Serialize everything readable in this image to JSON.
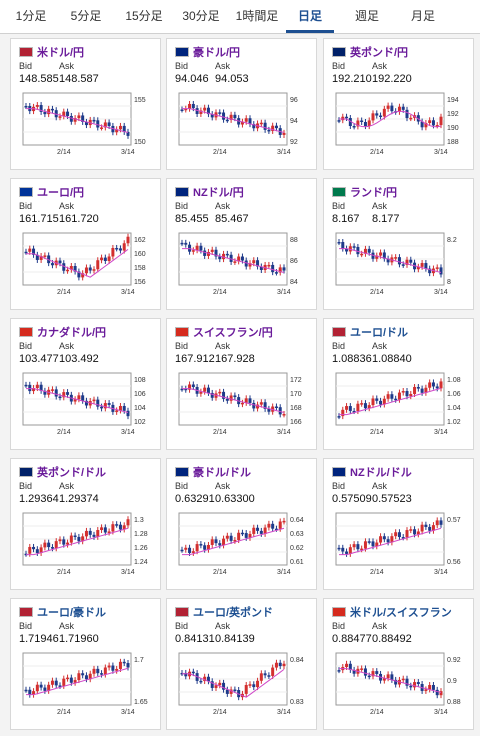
{
  "tabs": [
    {
      "label": "1分足",
      "active": false
    },
    {
      "label": "5分足",
      "active": false
    },
    {
      "label": "15分足",
      "active": false
    },
    {
      "label": "30分足",
      "active": false
    },
    {
      "label": "1時間足",
      "active": false
    },
    {
      "label": "日足",
      "active": true
    },
    {
      "label": "週足",
      "active": false
    },
    {
      "label": "月足",
      "active": false
    }
  ],
  "labels": {
    "bid": "Bid",
    "ask": "Ask"
  },
  "cards": [
    {
      "title": "米ドル/円",
      "bid": "148.585",
      "ask": "148.587",
      "ticks": [
        "155",
        "150"
      ],
      "x": [
        "2/14",
        "3/14"
      ],
      "trend": "down",
      "flag": "us"
    },
    {
      "title": "豪ドル/円",
      "bid": "94.046",
      "ask": "94.053",
      "ticks": [
        "96",
        "94",
        "92"
      ],
      "x": [
        "2/14",
        "3/14"
      ],
      "trend": "down",
      "flag": "au"
    },
    {
      "title": "英ポンド/円",
      "bid": "192.210",
      "ask": "192.220",
      "ticks": [
        "194",
        "192",
        "190",
        "188"
      ],
      "x": [
        "2/14",
        "3/14"
      ],
      "trend": "flat",
      "flag": "gb"
    },
    {
      "title": "ユーロ/円",
      "bid": "161.715",
      "ask": "161.720",
      "ticks": [
        "162",
        "160",
        "158",
        "156"
      ],
      "x": [
        "2/14",
        "3/14"
      ],
      "trend": "vshape",
      "flag": "eu"
    },
    {
      "title": "NZドル/円",
      "bid": "85.455",
      "ask": "85.467",
      "ticks": [
        "88",
        "86",
        "84"
      ],
      "x": [
        "2/14",
        "3/14"
      ],
      "trend": "down",
      "flag": "nz"
    },
    {
      "title": "ランド/円",
      "bid": "8.167",
      "ask": "8.177",
      "ticks": [
        "8.2",
        "8"
      ],
      "x": [
        "2/14",
        "3/14"
      ],
      "trend": "down",
      "flag": "za"
    },
    {
      "title": "カナダドル/円",
      "bid": "103.477",
      "ask": "103.492",
      "ticks": [
        "108",
        "106",
        "104",
        "102"
      ],
      "x": [
        "2/14",
        "3/14"
      ],
      "trend": "down",
      "flag": "ca"
    },
    {
      "title": "スイスフラン/円",
      "bid": "167.912",
      "ask": "167.928",
      "ticks": [
        "172",
        "170",
        "168",
        "166"
      ],
      "x": [
        "2/14",
        "3/14"
      ],
      "trend": "down",
      "flag": "ch"
    },
    {
      "title": "ユーロ/ドル",
      "bid": "1.08836",
      "ask": "1.08840",
      "ticks": [
        "1.08",
        "1.06",
        "1.04",
        "1.02"
      ],
      "x": [
        "2/14",
        "3/14"
      ],
      "trend": "up",
      "flag": "us",
      "blue": true
    },
    {
      "title": "英ポンド/ドル",
      "bid": "1.29364",
      "ask": "1.29374",
      "ticks": [
        "1.3",
        "1.28",
        "1.26",
        "1.24"
      ],
      "x": [
        "2/14",
        "3/14"
      ],
      "trend": "up",
      "flag": "gb"
    },
    {
      "title": "豪ドル/ドル",
      "bid": "0.63291",
      "ask": "0.63300",
      "ticks": [
        "0.64",
        "0.63",
        "0.62",
        "0.61"
      ],
      "x": [
        "2/14",
        "3/14"
      ],
      "trend": "up",
      "flag": "au"
    },
    {
      "title": "NZドル/ドル",
      "bid": "0.57509",
      "ask": "0.57523",
      "ticks": [
        "0.57",
        "0.56"
      ],
      "x": [
        "2/14",
        "3/14"
      ],
      "trend": "up",
      "flag": "nz"
    },
    {
      "title": "ユーロ/豪ドル",
      "bid": "1.71946",
      "ask": "1.71960",
      "ticks": [
        "1.7",
        "1.65"
      ],
      "x": [
        "2/14",
        "3/14"
      ],
      "trend": "up",
      "flag": "us",
      "blue": true
    },
    {
      "title": "ユーロ/英ポンド",
      "bid": "0.84131",
      "ask": "0.84139",
      "ticks": [
        "0.84",
        "0.83"
      ],
      "x": [
        "2/14",
        "3/14"
      ],
      "trend": "vshape",
      "flag": "us",
      "blue": true
    },
    {
      "title": "米ドル/スイスフラン",
      "bid": "0.88477",
      "ask": "0.88492",
      "ticks": [
        "0.92",
        "0.9",
        "0.88"
      ],
      "x": [
        "2/14",
        "3/14"
      ],
      "trend": "down",
      "flag": "ch",
      "blue": true
    }
  ]
}
